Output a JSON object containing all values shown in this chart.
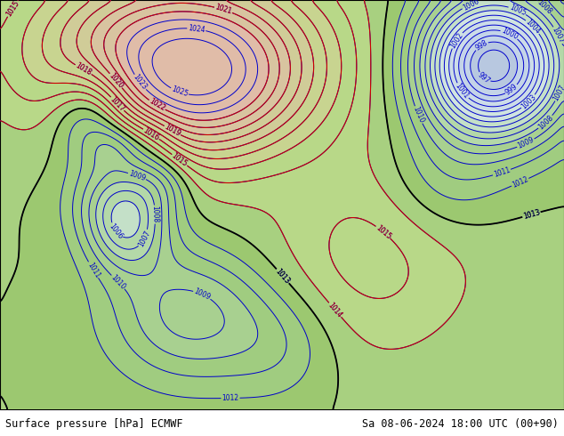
{
  "title_left": "Surface pressure [hPa] ECMWF",
  "title_right": "Sa 08-06-2024 18:00 UTC (00+90)",
  "figsize": [
    6.34,
    4.9
  ],
  "dpi": 100,
  "footer_fontsize": 8.5,
  "footer_color": "#000000",
  "land_color": "#b8d898",
  "ocean_color": "#d8dce8",
  "lake_color": "#c8ccd8",
  "border_color": "#808080",
  "state_color": "#808080",
  "lon_min": -135,
  "lon_max": -55,
  "lat_min": 10,
  "lat_max": 60,
  "blue_contour_color": "#0000cc",
  "red_contour_color": "#cc0000",
  "black_contour_color": "#000000",
  "blue_lw": 0.7,
  "red_lw": 0.8,
  "black_lw": 1.3,
  "label_fontsize": 5.5
}
